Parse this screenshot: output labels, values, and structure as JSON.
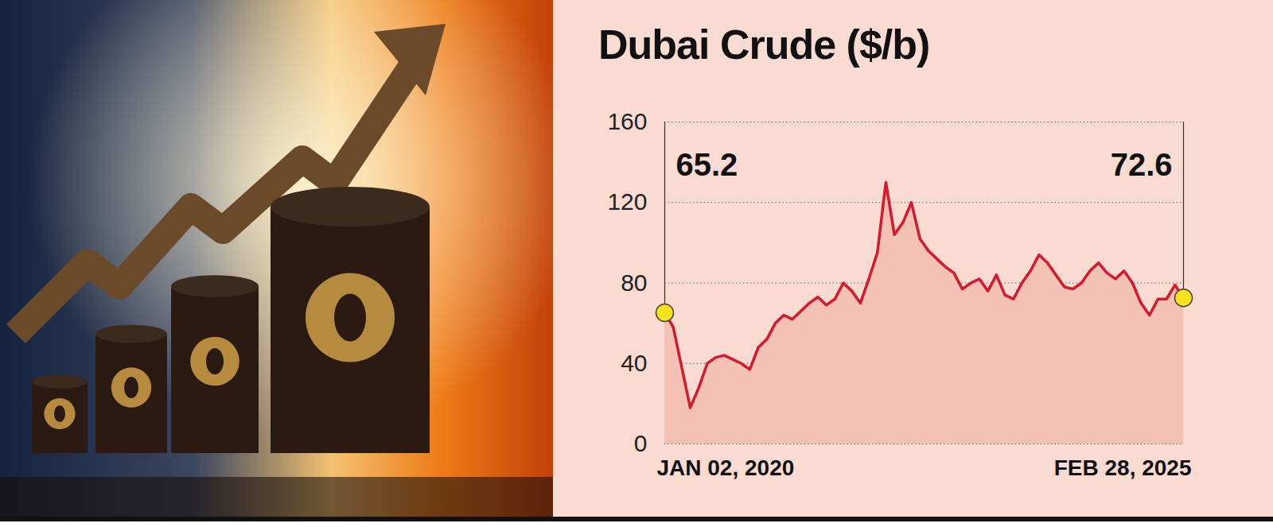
{
  "chart_data": {
    "type": "line",
    "title": "Dubai Crude ($/b)",
    "categories": [
      "JAN 02, 2020",
      null,
      null,
      null,
      null,
      null,
      null,
      null,
      null,
      null,
      null,
      null,
      null,
      null,
      null,
      null,
      null,
      null,
      null,
      null,
      null,
      null,
      null,
      null,
      null,
      null,
      null,
      null,
      null,
      null,
      null,
      null,
      null,
      null,
      null,
      null,
      null,
      null,
      null,
      null,
      null,
      null,
      null,
      null,
      null,
      null,
      null,
      null,
      null,
      null,
      null,
      null,
      null,
      null,
      null,
      null,
      null,
      null,
      null,
      null,
      null,
      "FEB 28, 2025"
    ],
    "values": [
      65.2,
      58,
      38,
      18,
      28,
      40,
      43,
      44,
      42,
      40,
      37,
      48,
      52,
      60,
      64,
      62,
      66,
      70,
      73,
      69,
      72,
      80,
      76,
      70,
      82,
      95,
      130,
      104,
      110,
      120,
      102,
      96,
      92,
      88,
      85,
      77,
      80,
      82,
      76,
      84,
      74,
      72,
      80,
      86,
      94,
      90,
      84,
      78,
      77,
      80,
      86,
      90,
      85,
      82,
      86,
      80,
      70,
      64,
      72,
      72,
      79,
      72.6
    ],
    "color": "#d7192d",
    "ylim": [
      0,
      160
    ],
    "yticks": [
      0,
      40,
      80,
      120,
      160
    ],
    "grid": true,
    "annotations": [
      {
        "x": "JAN 02, 2020",
        "y": 65.2,
        "text": "65.2"
      },
      {
        "x": "FEB 28, 2025",
        "y": 72.6,
        "text": "72.6"
      }
    ]
  }
}
